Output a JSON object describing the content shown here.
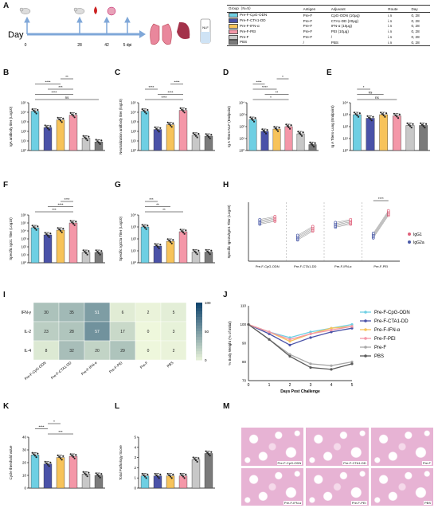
{
  "panel_letters": [
    "A",
    "B",
    "C",
    "D",
    "E",
    "F",
    "G",
    "H",
    "I",
    "J",
    "K",
    "L",
    "M"
  ],
  "groups": [
    "Pre-F-CpG-ODN",
    "Pre-F-CTA1-DD",
    "Pre-F-IFN-α",
    "Pre-F-PEI",
    "Pre-F",
    "PBS"
  ],
  "colors": {
    "cpg": "#6ecfe3",
    "cta": "#4a52a8",
    "ifn": "#f7c35a",
    "pei": "#f497a8",
    "pref": "#c8c8c8",
    "pbs": "#7a7a7a",
    "igg1": "#e0607a",
    "igg2a": "#4a5aa8"
  },
  "panelA": {
    "day_label": "Day",
    "ticks": [
      "0",
      "28",
      "42",
      "5 dpi"
    ],
    "table": {
      "headers": [
        "Group（N=5）",
        "Antigen",
        "Adjuvant",
        "Route",
        "Day"
      ],
      "rows": [
        [
          "Pre-F-CpG-ODN",
          "Pre-F",
          "CpG-ODN (10μg)",
          "i.n",
          "0, 28"
        ],
        [
          "Pre-F-CTA1-DD",
          "Pre-F",
          "CTA1-DD (20μg)",
          "i.n",
          "0, 28"
        ],
        [
          "Pre-F-IFN-α",
          "Pre-F",
          "IFN-α (10μg)",
          "i.n",
          "0, 28"
        ],
        [
          "Pre-F-PEI",
          "Pre-F",
          "PEI (10μg)",
          "i.n",
          "0, 28"
        ],
        [
          "Pre-F",
          "Pre-F",
          "/",
          "i.n",
          "0, 28"
        ],
        [
          "PBS",
          "/",
          "PBS",
          "i.n",
          "0, 28"
        ]
      ]
    }
  },
  "chart_data": [
    {
      "panel": "B",
      "type": "bar",
      "ylabel": "IgA antibody titer (Log10)",
      "yticks": [
        "10⁰",
        "10¹",
        "10²",
        "10³",
        "10⁴",
        "10⁵"
      ],
      "ylim": [
        0,
        5
      ],
      "values": [
        4.1,
        2.4,
        3.2,
        3.7,
        1.3,
        0.9
      ],
      "sig": [
        [
          "ns",
          0,
          5
        ],
        [
          "****",
          0,
          3
        ],
        [
          "***",
          1,
          3
        ],
        [
          "****",
          0,
          2
        ],
        [
          "**",
          2,
          3
        ]
      ]
    },
    {
      "panel": "C",
      "type": "bar",
      "ylabel": "Neutralization antibody titer (log10)",
      "yticks": [
        "10⁰",
        "10¹",
        "10²",
        "10³",
        "10⁴",
        "10⁵"
      ],
      "ylim": [
        0,
        5
      ],
      "values": [
        4.1,
        2.2,
        2.7,
        4.2,
        1.6,
        1.5
      ],
      "sig": [
        [
          "****",
          0,
          3
        ],
        [
          "****",
          1,
          3
        ],
        [
          "****",
          0,
          1
        ],
        [
          "****",
          2,
          3
        ]
      ]
    },
    {
      "panel": "D",
      "type": "bar",
      "ylabel": "Ig A Titers-NLF (Endpoint)",
      "yticks": [
        "10⁰",
        "10¹",
        "10²",
        "10³",
        "10⁴"
      ],
      "ylim": [
        0,
        4
      ],
      "values": [
        2.6,
        1.6,
        1.8,
        2.0,
        1.4,
        0.5
      ],
      "sig": [
        [
          "*",
          0,
          3
        ],
        [
          "**",
          1,
          3
        ],
        [
          "****",
          0,
          2
        ],
        [
          "****",
          0,
          1
        ],
        [
          "*",
          2,
          3
        ]
      ]
    },
    {
      "panel": "E",
      "type": "bar",
      "ylabel": "Ig A Titers-Lung (Endpoint)",
      "yticks": [
        "10⁰",
        "10¹",
        "10²",
        "10³",
        "10⁴"
      ],
      "ylim": [
        0,
        4
      ],
      "values": [
        3.0,
        2.7,
        3.0,
        2.9,
        2.1,
        2.1
      ],
      "sig": [
        [
          "ns",
          0,
          3
        ],
        [
          "ns",
          0,
          2
        ],
        [
          "*",
          0,
          1
        ]
      ]
    },
    {
      "panel": "F",
      "type": "bar",
      "ylabel": "Specific IgG1 Titer (Log10)",
      "yticks": [
        "10⁰",
        "10¹",
        "10²",
        "10³",
        "10⁴",
        "10⁵",
        "10⁶"
      ],
      "ylim": [
        0,
        6
      ],
      "values": [
        4.4,
        3.5,
        4.1,
        5.0,
        1.3,
        1.3
      ],
      "sig": [
        [
          "***",
          0,
          3
        ],
        [
          "****",
          1,
          3
        ],
        [
          "****",
          2,
          3
        ]
      ]
    },
    {
      "panel": "G",
      "type": "bar",
      "ylabel": "Specific IgG2a Titer (Log10)",
      "yticks": [
        "10⁰",
        "10¹",
        "10²",
        "10³",
        "10⁴"
      ],
      "ylim": [
        0,
        4
      ],
      "values": [
        3.0,
        1.4,
        1.8,
        2.6,
        0.9,
        0.9
      ],
      "sig": [
        [
          "**",
          0,
          3
        ],
        [
          "**",
          0,
          2
        ],
        [
          "***",
          0,
          1
        ]
      ]
    },
    {
      "panel": "H",
      "type": "scatter",
      "ylabel": "Specific IgG2a/IgG1 Titer (Log10)",
      "groups": [
        "Pre-F-CpG-ODN",
        "Pre-F-CTA1-DD",
        "Pre-F-IFN-α",
        "Pre-F-PEI"
      ],
      "igg1": [
        4.3,
        3.3,
        4.0,
        4.9
      ],
      "igg2a": [
        4.0,
        2.4,
        3.7,
        2.6
      ],
      "legend": [
        "IgG1",
        "IgG2a"
      ],
      "sig": "****"
    },
    {
      "panel": "I",
      "type": "heatmap",
      "rows": [
        "IFN-γ",
        "IL-2",
        "IL-4"
      ],
      "cols": [
        "Pre-F-CpG-ODN",
        "Pre-F-CTA1-DD",
        "Pre-F-IFN-α",
        "Pre-F-PEI",
        "Pre-F",
        "PBS"
      ],
      "values": [
        [
          30,
          35,
          51,
          6,
          2,
          5
        ],
        [
          23,
          28,
          57,
          17,
          0,
          3
        ],
        [
          8,
          32,
          20,
          29,
          0,
          2
        ]
      ],
      "scale": [
        "0",
        "50",
        "100"
      ]
    },
    {
      "panel": "J",
      "type": "line",
      "xlabel": "Days Post Challenge",
      "ylabel": "% Body Weight (% of initial)",
      "x": [
        0,
        1,
        2,
        3,
        4,
        5
      ],
      "yticks": [
        "70",
        "80",
        "90",
        "100",
        "110"
      ],
      "ylim": [
        70,
        110
      ],
      "series": [
        {
          "name": "Pre-F-CpG-ODN",
          "values": [
            100,
            96,
            93,
            96,
            98,
            100
          ]
        },
        {
          "name": "Pre-F-CTA1-DD",
          "values": [
            100,
            95,
            89,
            93,
            96,
            98
          ]
        },
        {
          "name": "Pre-F-IFN-α",
          "values": [
            100,
            96,
            91,
            95,
            98,
            99
          ]
        },
        {
          "name": "Pre-F-PEI",
          "values": [
            100,
            96,
            92,
            95,
            97,
            99
          ]
        },
        {
          "name": "Pre-F",
          "values": [
            100,
            92,
            84,
            79,
            78,
            80
          ]
        },
        {
          "name": "PBS",
          "values": [
            100,
            92,
            83,
            77,
            76,
            79
          ]
        }
      ]
    },
    {
      "panel": "K",
      "type": "bar",
      "ylabel": "Cycle threshold value",
      "yticks": [
        "0",
        "10",
        "20",
        "30",
        "40"
      ],
      "ylim": [
        0,
        40
      ],
      "values": [
        26,
        19,
        24,
        25,
        11,
        10
      ],
      "sig": [
        [
          "***",
          1,
          3
        ],
        [
          "****",
          0,
          1
        ],
        [
          "*",
          1,
          2
        ]
      ]
    },
    {
      "panel": "L",
      "type": "bar",
      "ylabel": "Total Pathology Score",
      "yticks": [
        "0",
        "1",
        "2",
        "3",
        "4",
        "5"
      ],
      "ylim": [
        0,
        5
      ],
      "values": [
        1.2,
        1.2,
        1.2,
        1.2,
        2.8,
        3.4
      ],
      "sig": []
    }
  ],
  "panelM": {
    "captions": [
      "Pre-F-CpG-ODN",
      "Pre-F-CTA1-DD",
      "Pre-F",
      "Pre-F-IFN-α",
      "Pre-F-PEI",
      "PBS"
    ]
  }
}
